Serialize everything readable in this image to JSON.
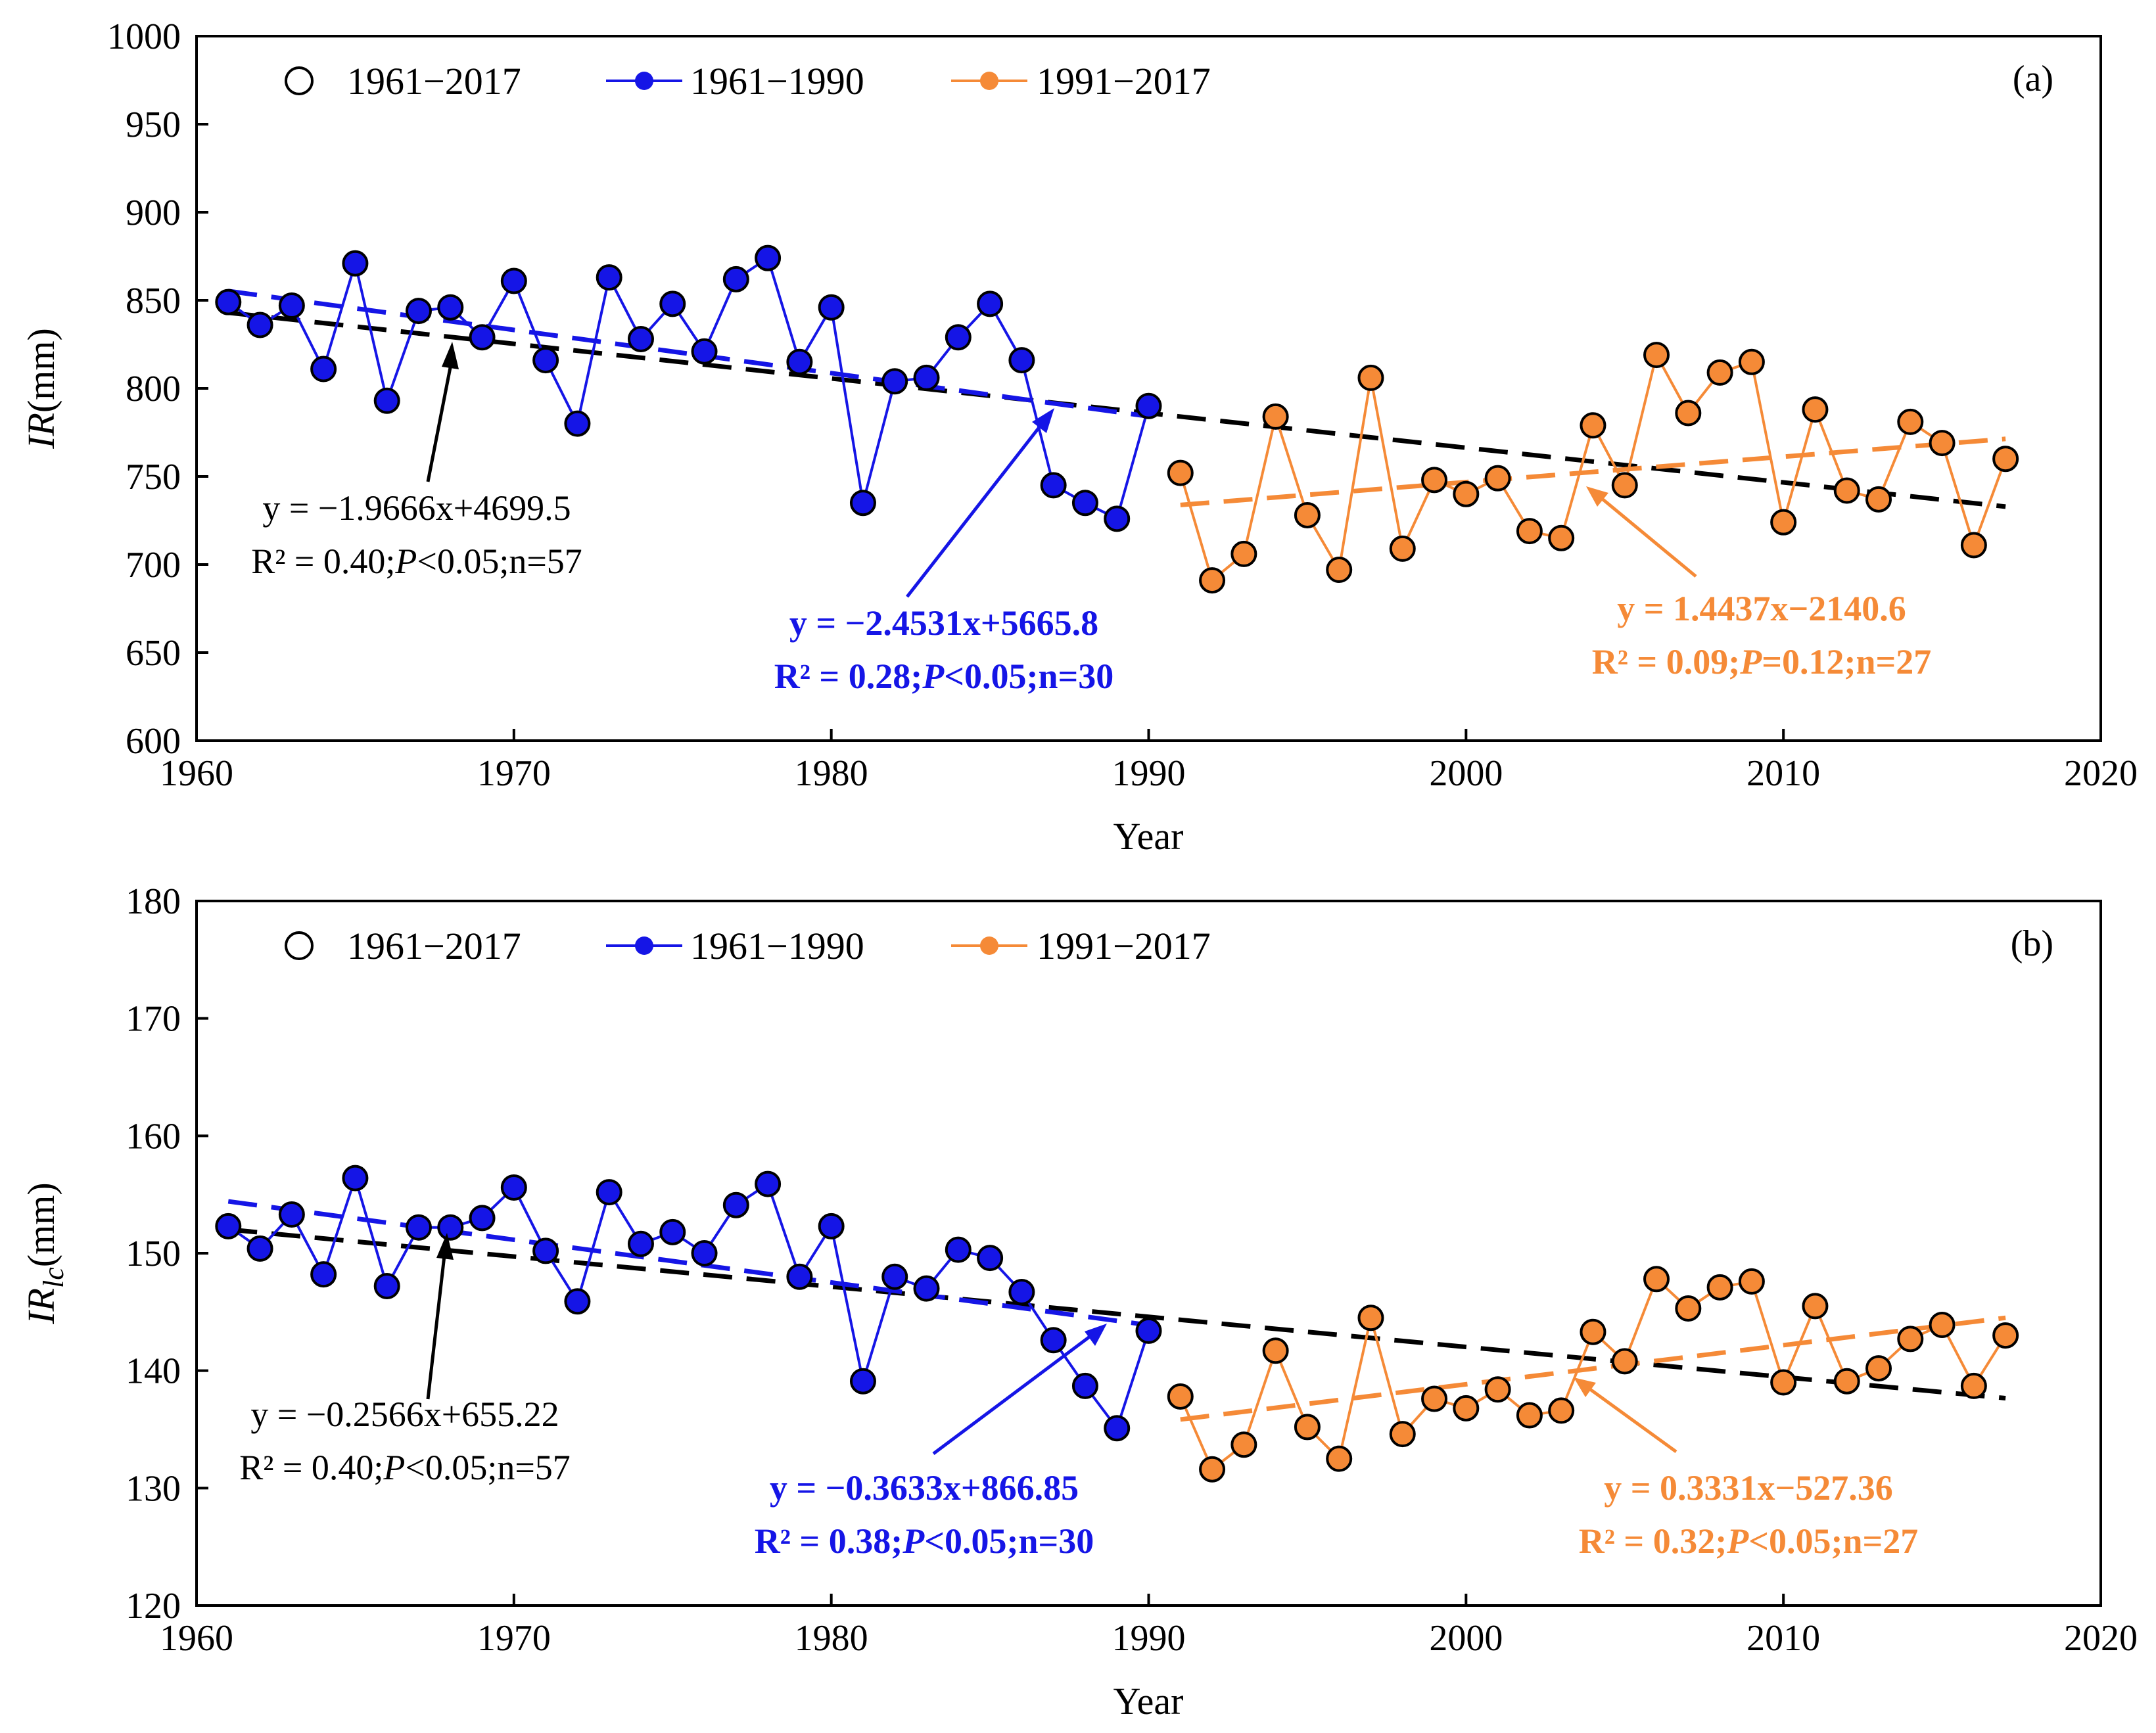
{
  "colors": {
    "all_marker_edge": "#000000",
    "period1": "#1515e6",
    "period2": "#f58a37",
    "trend_all": "#000000"
  },
  "chart_data": [
    {
      "type": "line",
      "panel_label": "(a)",
      "xlabel": "Year",
      "ylabel_main": "IR",
      "ylabel_sub": "",
      "ylabel_unit": "(mm)",
      "xlim": [
        1960,
        2020
      ],
      "ylim": [
        600,
        1000
      ],
      "xticks": [
        1960,
        1970,
        1980,
        1990,
        2000,
        2010,
        2020
      ],
      "yticks": [
        600,
        650,
        700,
        750,
        800,
        850,
        900,
        950,
        1000
      ],
      "legend": [
        "1961−2017",
        "1961−1990",
        "1991−2017"
      ],
      "x": [
        1961,
        1962,
        1963,
        1964,
        1965,
        1966,
        1967,
        1968,
        1969,
        1970,
        1971,
        1972,
        1973,
        1974,
        1975,
        1976,
        1977,
        1978,
        1979,
        1980,
        1981,
        1982,
        1983,
        1984,
        1985,
        1986,
        1987,
        1988,
        1989,
        1990,
        1991,
        1992,
        1993,
        1994,
        1995,
        1996,
        1997,
        1998,
        1999,
        2000,
        2001,
        2002,
        2003,
        2004,
        2005,
        2006,
        2007,
        2008,
        2009,
        2010,
        2011,
        2012,
        2013,
        2014,
        2015,
        2016,
        2017
      ],
      "values": [
        849,
        836,
        847,
        811,
        871,
        793,
        844,
        846,
        829,
        861,
        816,
        780,
        863,
        828,
        848,
        821,
        862,
        874,
        815,
        846,
        735,
        804,
        806,
        829,
        848,
        816,
        745,
        735,
        726,
        790,
        752,
        691,
        706,
        784,
        728,
        697,
        806,
        709,
        748,
        740,
        749,
        719,
        715,
        779,
        745,
        819,
        786,
        809,
        815,
        724,
        788,
        742,
        737,
        781,
        769,
        711,
        760
      ],
      "trends": [
        {
          "name": "1961−2017",
          "slope": -1.9666,
          "intercept": 4699.5,
          "range": [
            1961,
            2017
          ],
          "equation": "y = −1.9666x+4699.5",
          "stats_prefix": "R² = 0.40;",
          "stats_p": "P",
          "stats_suffix": "<0.05;n=57"
        },
        {
          "name": "1961−1990",
          "slope": -2.4531,
          "intercept": 5665.8,
          "range": [
            1961,
            1990
          ],
          "equation": "y = −2.4531x+5665.8",
          "stats_prefix": "R² = 0.28;",
          "stats_p": "P",
          "stats_suffix": "<0.05;n=30"
        },
        {
          "name": "1991−2017",
          "slope": 1.4437,
          "intercept": -2140.6,
          "range": [
            1991,
            2017
          ],
          "equation": "y = 1.4437x−2140.6",
          "stats_prefix": "R² = 0.09;",
          "stats_p": "P",
          "stats_suffix": "=0.12;n=27"
        }
      ]
    },
    {
      "type": "line",
      "panel_label": "(b)",
      "xlabel": "Year",
      "ylabel_main": "IR",
      "ylabel_sub": "lc",
      "ylabel_unit": "(mm)",
      "xlim": [
        1960,
        2020
      ],
      "ylim": [
        120,
        180
      ],
      "xticks": [
        1960,
        1970,
        1980,
        1990,
        2000,
        2010,
        2020
      ],
      "yticks": [
        120,
        130,
        140,
        150,
        160,
        170,
        180
      ],
      "legend": [
        "1961−2017",
        "1961−1990",
        "1991−2017"
      ],
      "x": [
        1961,
        1962,
        1963,
        1964,
        1965,
        1966,
        1967,
        1968,
        1969,
        1970,
        1971,
        1972,
        1973,
        1974,
        1975,
        1976,
        1977,
        1978,
        1979,
        1980,
        1981,
        1982,
        1983,
        1984,
        1985,
        1986,
        1987,
        1988,
        1989,
        1990,
        1991,
        1992,
        1993,
        1994,
        1995,
        1996,
        1997,
        1998,
        1999,
        2000,
        2001,
        2002,
        2003,
        2004,
        2005,
        2006,
        2007,
        2008,
        2009,
        2010,
        2011,
        2012,
        2013,
        2014,
        2015,
        2016,
        2017
      ],
      "values": [
        152.3,
        150.4,
        153.3,
        148.2,
        156.4,
        147.2,
        152.2,
        152.2,
        153.0,
        155.6,
        150.2,
        145.9,
        155.2,
        150.8,
        151.8,
        150.0,
        154.1,
        155.9,
        148.0,
        152.3,
        139.1,
        148.0,
        147.0,
        150.3,
        149.6,
        146.7,
        142.6,
        138.7,
        135.1,
        143.4,
        137.8,
        131.6,
        133.7,
        141.7,
        135.2,
        132.5,
        144.5,
        134.6,
        137.6,
        136.8,
        138.4,
        136.2,
        136.6,
        143.3,
        140.8,
        147.8,
        145.3,
        147.1,
        147.6,
        139.0,
        145.5,
        139.1,
        140.2,
        142.7,
        143.9,
        138.7,
        143.0
      ],
      "trends": [
        {
          "name": "1961−2017",
          "slope": -0.2566,
          "intercept": 655.22,
          "range": [
            1961,
            2017
          ],
          "equation": "y = −0.2566x+655.22",
          "stats_prefix": "R² = 0.40;",
          "stats_p": "P",
          "stats_suffix": "<0.05;n=57"
        },
        {
          "name": "1961−1990",
          "slope": -0.3633,
          "intercept": 866.85,
          "range": [
            1961,
            1990
          ],
          "equation": "y = −0.3633x+866.85",
          "stats_prefix": "R² = 0.38;",
          "stats_p": "P",
          "stats_suffix": "<0.05;n=30"
        },
        {
          "name": "1991−2017",
          "slope": 0.3331,
          "intercept": -527.36,
          "range": [
            1991,
            2017
          ],
          "equation": "y = 0.3331x−527.36",
          "stats_prefix": "R² = 0.32;",
          "stats_p": "P",
          "stats_suffix": "<0.05;n=27"
        }
      ]
    }
  ]
}
